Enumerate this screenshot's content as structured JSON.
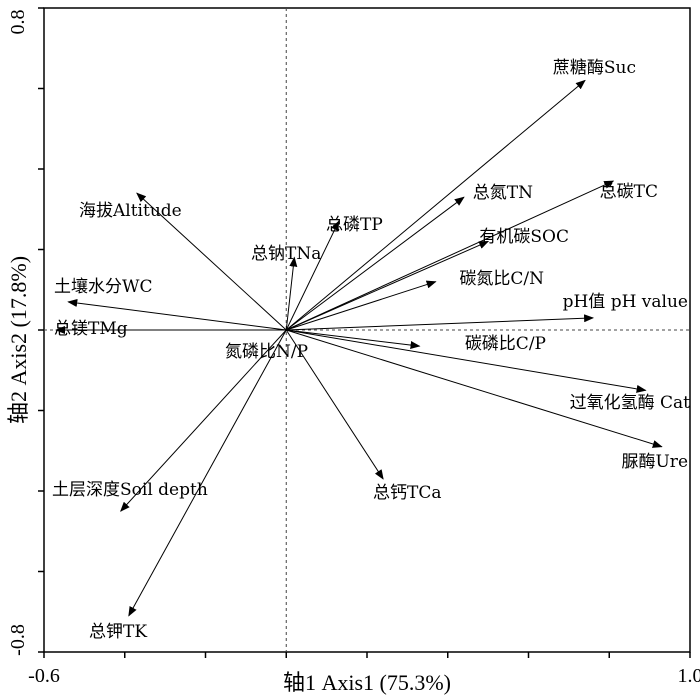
{
  "chart_data": {
    "type": "biplot",
    "xlabel": "轴1 Axis1 (75.3%)",
    "ylabel": "轴2 Axis2 (17.8%)",
    "xlim": [
      -0.6,
      1.0
    ],
    "ylim": [
      -0.8,
      0.8
    ],
    "x_tick_labels": [
      {
        "value": -0.6,
        "label": "-0.6"
      },
      {
        "value": 1.0,
        "label": "1.0"
      }
    ],
    "y_tick_labels": [
      {
        "value": 0.8,
        "label": "0.8"
      },
      {
        "value": -0.8,
        "label": "-0.8"
      }
    ],
    "x_ticks": [
      -0.6,
      -0.4,
      -0.2,
      0.0,
      0.2,
      0.4,
      0.6,
      0.8,
      1.0
    ],
    "y_ticks": [
      -0.8,
      -0.6,
      -0.4,
      -0.2,
      0.0,
      0.2,
      0.4,
      0.6,
      0.8
    ],
    "vectors": [
      {
        "label": "蔗糖酶Suc",
        "x": 0.74,
        "y": 0.62,
        "anchor": "right"
      },
      {
        "label": "总碳TC",
        "x": 0.81,
        "y": 0.37,
        "anchor": "right"
      },
      {
        "label": "总氮TN",
        "x": 0.44,
        "y": 0.33,
        "anchor": "right"
      },
      {
        "label": "有机碳SOC",
        "x": 0.5,
        "y": 0.22,
        "anchor": "right"
      },
      {
        "label": "碳氮比C/N",
        "x": 0.37,
        "y": 0.12,
        "anchor": "right"
      },
      {
        "label": "pH值 pH value",
        "x": 0.76,
        "y": 0.03,
        "anchor": "right"
      },
      {
        "label": "碳磷比C/P",
        "x": 0.33,
        "y": -0.04,
        "anchor": "right"
      },
      {
        "label": "过氧化氢酶 Cat",
        "x": 0.89,
        "y": -0.15,
        "anchor": "right"
      },
      {
        "label": "脲酶Ure",
        "x": 0.93,
        "y": -0.29,
        "anchor": "right"
      },
      {
        "label": "总钙TCa",
        "x": 0.24,
        "y": -0.37,
        "anchor": "left"
      },
      {
        "label": "总磷TP",
        "x": 0.13,
        "y": 0.27,
        "anchor": "left"
      },
      {
        "label": "总钠TNa",
        "x": 0.02,
        "y": 0.18,
        "anchor": "left"
      },
      {
        "label": "海拔Altitude",
        "x": -0.37,
        "y": 0.34,
        "anchor": "left"
      },
      {
        "label": "土壤水分WC",
        "x": -0.54,
        "y": 0.07,
        "anchor": "left"
      },
      {
        "label": "总镁TMg",
        "x": -0.57,
        "y": 0.0,
        "anchor": "left"
      },
      {
        "label": "氮磷比N/P",
        "x": 0.0,
        "y": 0.0,
        "anchor": "left"
      },
      {
        "label": "土层深度Soil depth",
        "x": -0.41,
        "y": -0.45,
        "anchor": "left"
      },
      {
        "label": "总钾TK",
        "x": -0.39,
        "y": -0.71,
        "anchor": "left"
      }
    ],
    "grid": false,
    "zero_lines": true
  }
}
